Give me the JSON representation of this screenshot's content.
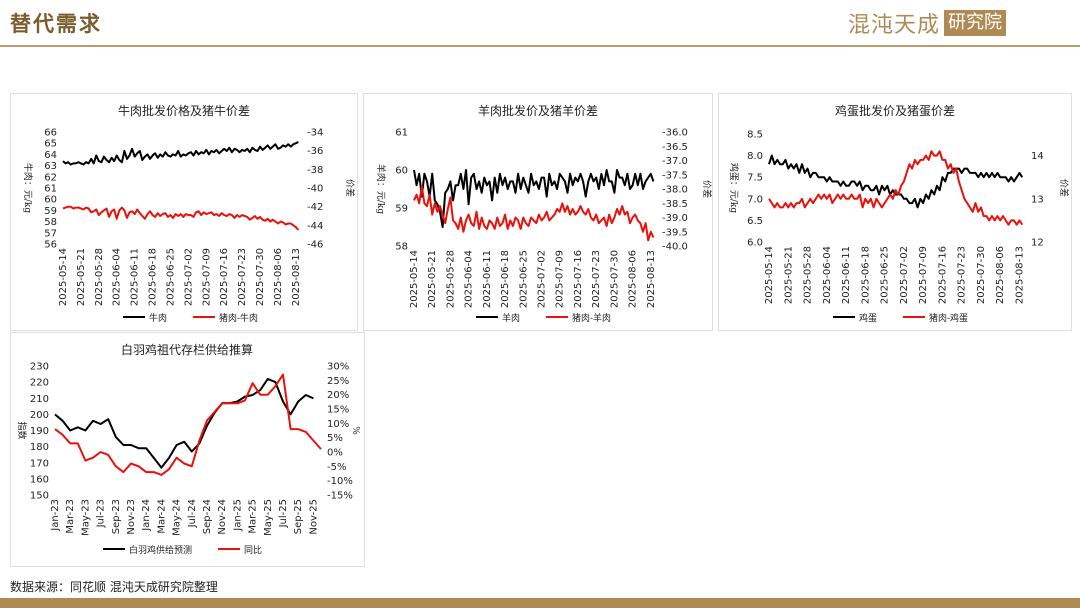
{
  "header": {
    "title": "替代需求",
    "logo_text": "混沌天成",
    "logo_box": "研究院"
  },
  "source": "数据来源：同花顺 混沌天成研究院整理",
  "colors": {
    "black": "#000000",
    "red": "#e8120c",
    "brand": "#b08a55"
  },
  "chart_data": [
    {
      "type": "line",
      "title": "牛肉批发价格及猪牛价差",
      "ylabel": "牛肉：元/kg",
      "y2label": "价差",
      "ylim": [
        56,
        66
      ],
      "y2lim": [
        -46,
        -34
      ],
      "yticks": [
        "66",
        "65",
        "64",
        "63",
        "62",
        "61",
        "60",
        "59",
        "58",
        "57",
        "56"
      ],
      "y2ticks": [
        "-34",
        "-36",
        "-38",
        "-40",
        "-42",
        "-44",
        "-46"
      ],
      "x_start": "2025-05-14",
      "x_end": "2025-08-15",
      "xticks": [
        "2025-05-14",
        "2025-05-21",
        "2025-05-28",
        "2025-06-04",
        "2025-06-11",
        "2025-06-18",
        "2025-06-25",
        "2025-07-02",
        "2025-07-09",
        "2025-07-16",
        "2025-07-23",
        "2025-07-30",
        "2025-08-06",
        "2025-08-13"
      ],
      "series": [
        {
          "name": "牛肉",
          "axis": "left",
          "color": "#000000",
          "values": [
            63.4,
            63.2,
            63.3,
            63.1,
            63.2,
            63.2,
            63.3,
            63.2,
            63.1,
            63.3,
            63.2,
            63.6,
            63.2,
            63.9,
            63.4,
            63.3,
            63.8,
            63.5,
            63.3,
            63.7,
            63.4,
            63.9,
            63.5,
            63.3,
            64.3,
            63.6,
            63.9,
            64.5,
            63.8,
            64.1,
            64.3,
            63.5,
            63.8,
            64.0,
            63.6,
            63.9,
            64.1,
            63.7,
            64.0,
            63.8,
            64.2,
            63.9,
            63.8,
            64.0,
            63.9,
            64.3,
            63.8,
            64.0,
            63.9,
            64.1,
            64.2,
            63.9,
            64.3,
            64.0,
            64.2,
            64.1,
            64.4,
            64.0,
            64.3,
            64.2,
            64.4,
            64.1,
            64.3,
            64.5,
            64.3,
            64.6,
            64.2,
            64.5,
            64.4,
            64.2,
            64.4,
            64.3,
            64.5,
            64.2,
            64.6,
            64.4,
            64.3,
            64.7,
            64.4,
            64.6,
            64.8,
            64.5,
            64.7,
            64.9,
            64.5,
            64.6,
            64.8,
            64.7,
            64.9,
            64.7,
            64.9,
            65.0,
            65.1
          ]
        },
        {
          "name": "猪肉-牛肉",
          "axis": "right",
          "color": "#e8120c",
          "values": [
            -42.2,
            -42.1,
            -42.0,
            -42.0,
            -42.2,
            -42.1,
            -42.1,
            -42.2,
            -42.3,
            -42.1,
            -42.2,
            -42.6,
            -42.5,
            -42.3,
            -42.9,
            -42.6,
            -42.4,
            -42.2,
            -43.1,
            -42.5,
            -42.3,
            -43.3,
            -42.4,
            -42.1,
            -42.4,
            -43.2,
            -42.6,
            -42.5,
            -42.8,
            -42.3,
            -42.7,
            -43.0,
            -43.3,
            -42.8,
            -42.5,
            -42.9,
            -43.1,
            -42.7,
            -43.0,
            -42.8,
            -42.7,
            -43.1,
            -42.9,
            -43.2,
            -42.8,
            -43.0,
            -42.8,
            -43.1,
            -42.8,
            -42.9,
            -42.9,
            -43.1,
            -42.6,
            -42.5,
            -42.9,
            -42.6,
            -42.8,
            -42.7,
            -42.6,
            -42.9,
            -42.8,
            -43.0,
            -42.7,
            -42.9,
            -43.0,
            -42.8,
            -42.9,
            -43.2,
            -42.9,
            -43.1,
            -42.9,
            -43.0,
            -43.1,
            -43.4,
            -43.2,
            -43.0,
            -43.3,
            -43.1,
            -43.4,
            -43.5,
            -43.3,
            -43.6,
            -43.4,
            -43.6,
            -43.8,
            -43.6,
            -43.7,
            -43.9,
            -43.8,
            -43.8,
            -44.0,
            -44.2,
            -44.5
          ]
        }
      ],
      "legend": "bottom"
    },
    {
      "type": "line",
      "title": "羊肉批发价及猪羊价差",
      "ylabel": "羊肉：元/kg",
      "y2label": "价差",
      "ylim": [
        58,
        61
      ],
      "y2lim": [
        -40.0,
        -36.0
      ],
      "yticks": [
        "61",
        "60",
        "59",
        "58"
      ],
      "y2ticks": [
        "-36.0",
        "-36.5",
        "-37.0",
        "-37.5",
        "-38.0",
        "-38.5",
        "-39.0",
        "-39.5",
        "-40.0"
      ],
      "x_start": "2025-05-14",
      "x_end": "2025-08-15",
      "xticks": [
        "2025-05-14",
        "2025-05-21",
        "2025-05-28",
        "2025-06-04",
        "2025-06-11",
        "2025-06-18",
        "2025-06-25",
        "2025-07-02",
        "2025-07-09",
        "2025-07-16",
        "2025-07-23",
        "2025-07-30",
        "2025-08-06",
        "2025-08-13"
      ],
      "series": [
        {
          "name": "羊肉",
          "axis": "left",
          "color": "#000000",
          "values": [
            60.0,
            59.6,
            59.9,
            59.3,
            59.9,
            59.7,
            59.3,
            59.9,
            59.2,
            59.1,
            58.9,
            58.5,
            59.4,
            59.5,
            59.7,
            59.2,
            59.6,
            59.6,
            59.9,
            59.5,
            60.0,
            59.1,
            59.8,
            59.9,
            59.5,
            59.7,
            59.4,
            59.8,
            59.6,
            59.7,
            59.2,
            59.8,
            59.4,
            59.9,
            59.6,
            59.8,
            59.5,
            59.7,
            59.7,
            59.4,
            59.9,
            59.5,
            59.8,
            59.6,
            59.4,
            59.9,
            59.6,
            59.7,
            59.5,
            59.8,
            59.8,
            59.3,
            59.9,
            59.6,
            59.7,
            59.5,
            59.9,
            59.8,
            59.7,
            59.4,
            59.9,
            59.6,
            59.8,
            59.7,
            59.9,
            59.7,
            59.3,
            59.7,
            59.9,
            59.7,
            59.8,
            59.5,
            59.9,
            59.6,
            60.0,
            59.7,
            59.7,
            59.4,
            60.0,
            59.8,
            59.8,
            59.6,
            59.9,
            59.5,
            59.6,
            59.9,
            59.6,
            59.9,
            59.5,
            59.7,
            59.8,
            59.9,
            59.7
          ]
        },
        {
          "name": "猪肉-羊肉",
          "axis": "right",
          "color": "#e8120c",
          "values": [
            -38.4,
            -38.2,
            -38.5,
            -37.9,
            -38.5,
            -38.6,
            -38.2,
            -38.9,
            -38.5,
            -38.8,
            -38.6,
            -38.9,
            -39.2,
            -38.7,
            -38.3,
            -39.1,
            -39.2,
            -39.4,
            -39.0,
            -39.5,
            -39.1,
            -38.9,
            -39.2,
            -39.3,
            -38.8,
            -39.4,
            -39.0,
            -39.3,
            -39.4,
            -39.1,
            -39.2,
            -39.4,
            -39.0,
            -39.3,
            -39.2,
            -38.9,
            -39.4,
            -39.1,
            -39.3,
            -39.0,
            -39.1,
            -39.4,
            -39.0,
            -39.2,
            -39.3,
            -39.0,
            -39.1,
            -39.2,
            -38.9,
            -39.1,
            -39.0,
            -38.8,
            -39.1,
            -39.0,
            -38.9,
            -38.7,
            -38.8,
            -38.5,
            -38.8,
            -38.6,
            -38.9,
            -38.7,
            -38.9,
            -38.8,
            -38.6,
            -38.8,
            -38.9,
            -38.7,
            -39.0,
            -39.1,
            -38.9,
            -39.2,
            -39.1,
            -39.0,
            -39.3,
            -38.9,
            -39.2,
            -39.0,
            -38.7,
            -38.9,
            -38.6,
            -38.9,
            -38.8,
            -39.2,
            -39.0,
            -38.9,
            -39.1,
            -39.2,
            -39.5,
            -39.2,
            -39.8,
            -39.5,
            -39.7
          ]
        }
      ],
      "legend": "bottom"
    },
    {
      "type": "line",
      "title": "鸡蛋批发价及猪蛋价差",
      "ylabel": "鸡蛋：元/kg",
      "y2label": "价差",
      "ylim": [
        6.0,
        8.5
      ],
      "y2lim": [
        12,
        14.5
      ],
      "yticks": [
        "8.5",
        "8.0",
        "7.5",
        "7.0",
        "6.5",
        "6.0"
      ],
      "y2ticks": [
        "14",
        "13",
        "12"
      ],
      "x_start": "2025-05-14",
      "x_end": "2025-08-15",
      "xticks": [
        "2025-05-14",
        "2025-05-21",
        "2025-05-28",
        "2025-06-04",
        "2025-06-11",
        "2025-06-18",
        "2025-06-25",
        "2025-07-02",
        "2025-07-09",
        "2025-07-16",
        "2025-07-23",
        "2025-07-30",
        "2025-08-06",
        "2025-08-13"
      ],
      "series": [
        {
          "name": "鸡蛋",
          "axis": "left",
          "color": "#000000",
          "values": [
            7.8,
            8.0,
            7.8,
            7.9,
            7.8,
            7.8,
            7.9,
            7.7,
            7.8,
            7.7,
            7.8,
            7.6,
            7.8,
            7.6,
            7.7,
            7.5,
            7.6,
            7.6,
            7.5,
            7.5,
            7.5,
            7.4,
            7.5,
            7.4,
            7.4,
            7.4,
            7.3,
            7.4,
            7.3,
            7.3,
            7.4,
            7.4,
            7.3,
            7.4,
            7.2,
            7.3,
            7.3,
            7.2,
            7.2,
            7.3,
            7.1,
            7.3,
            7.2,
            7.3,
            7.1,
            7.2,
            7.1,
            7.1,
            7.1,
            7.0,
            7.0,
            6.9,
            6.9,
            7.0,
            6.8,
            7.0,
            6.9,
            7.1,
            7.0,
            7.2,
            7.1,
            7.3,
            7.2,
            7.5,
            7.4,
            7.6,
            7.6,
            7.7,
            7.7,
            7.7,
            7.6,
            7.7,
            7.7,
            7.6,
            7.6,
            7.6,
            7.5,
            7.6,
            7.5,
            7.6,
            7.5,
            7.6,
            7.5,
            7.6,
            7.5,
            7.5,
            7.5,
            7.4,
            7.5,
            7.4,
            7.5,
            7.6,
            7.5
          ]
        },
        {
          "name": "猪肉-鸡蛋",
          "axis": "right",
          "color": "#e8120c",
          "values": [
            13.0,
            12.9,
            12.8,
            12.9,
            12.8,
            12.8,
            12.9,
            12.8,
            12.9,
            12.8,
            12.9,
            12.9,
            13.0,
            12.8,
            12.9,
            13.0,
            12.9,
            13.0,
            13.1,
            13.0,
            13.1,
            13.0,
            13.1,
            12.9,
            13.0,
            13.1,
            13.0,
            13.1,
            13.0,
            13.0,
            13.1,
            13.0,
            13.0,
            13.1,
            12.8,
            13.0,
            12.9,
            13.0,
            12.8,
            13.0,
            12.9,
            12.8,
            12.9,
            13.0,
            13.1,
            13.0,
            13.2,
            13.1,
            13.3,
            13.4,
            13.6,
            13.8,
            13.7,
            13.9,
            13.8,
            13.9,
            13.9,
            14.0,
            13.9,
            14.1,
            14.0,
            14.0,
            14.1,
            13.9,
            13.9,
            13.7,
            13.8,
            13.6,
            13.7,
            13.4,
            13.2,
            13.0,
            12.9,
            12.8,
            12.7,
            12.9,
            12.7,
            12.8,
            12.6,
            12.6,
            12.5,
            12.6,
            12.5,
            12.6,
            12.5,
            12.6,
            12.5,
            12.4,
            12.5,
            12.5,
            12.4,
            12.5,
            12.4
          ]
        }
      ],
      "legend": "bottom"
    },
    {
      "type": "line",
      "title": "白羽鸡祖代存栏供给推算",
      "ylabel": "指数",
      "y2label": "%",
      "ylim": [
        150,
        230
      ],
      "y2lim": [
        -15,
        30
      ],
      "yticks": [
        "230",
        "220",
        "210",
        "200",
        "190",
        "180",
        "170",
        "160",
        "150"
      ],
      "y2ticks": [
        "30%",
        "25%",
        "20%",
        "15%",
        "10%",
        "5%",
        "0%",
        "-5%",
        "-10%",
        "-15%"
      ],
      "categories": [
        "Jan-23",
        "Feb-23",
        "Mar-23",
        "Apr-23",
        "May-23",
        "Jun-23",
        "Jul-23",
        "Aug-23",
        "Sep-23",
        "Oct-23",
        "Nov-23",
        "Dec-23",
        "Jan-24",
        "Feb-24",
        "Mar-24",
        "Apr-24",
        "May-24",
        "Jun-24",
        "Jul-24",
        "Aug-24",
        "Sep-24",
        "Oct-24",
        "Nov-24",
        "Dec-24",
        "Jan-25",
        "Feb-25",
        "Mar-25",
        "Apr-25",
        "May-25",
        "Jun-25",
        "Jul-25",
        "Aug-25",
        "Sep-25",
        "Oct-25",
        "Nov-25",
        "Dec-25"
      ],
      "xticks": [
        "Jan-23",
        "Mar-23",
        "May-23",
        "Jul-23",
        "Sep-23",
        "Nov-23",
        "Jan-24",
        "Mar-24",
        "May-24",
        "Jul-24",
        "Sep-24",
        "Nov-24",
        "Jan-25",
        "Mar-25",
        "May-25",
        "Jul-25",
        "Sep-25",
        "Nov-25"
      ],
      "series": [
        {
          "name": "白羽鸡供给预测",
          "axis": "left",
          "color": "#000000",
          "values": [
            200,
            196,
            190,
            192,
            190,
            196,
            194,
            197,
            186,
            181,
            181,
            179,
            179,
            173,
            167,
            173,
            181,
            183,
            177,
            182,
            193,
            201,
            207,
            207,
            208,
            211,
            212,
            215,
            222,
            220,
            208,
            200,
            208,
            212,
            210,
            null
          ]
        },
        {
          "name": "同比",
          "axis": "right",
          "color": "#e8120c",
          "values": [
            8,
            6,
            3,
            3,
            -3,
            -2,
            0,
            -1,
            -5,
            -7,
            -4,
            -5,
            -7,
            -7,
            -8,
            -6,
            -2,
            -4,
            -5,
            4,
            11,
            14,
            17,
            17,
            17,
            18,
            24,
            20,
            20,
            23,
            27,
            8,
            8,
            7,
            4,
            1
          ]
        }
      ],
      "legend": "bottom"
    }
  ]
}
